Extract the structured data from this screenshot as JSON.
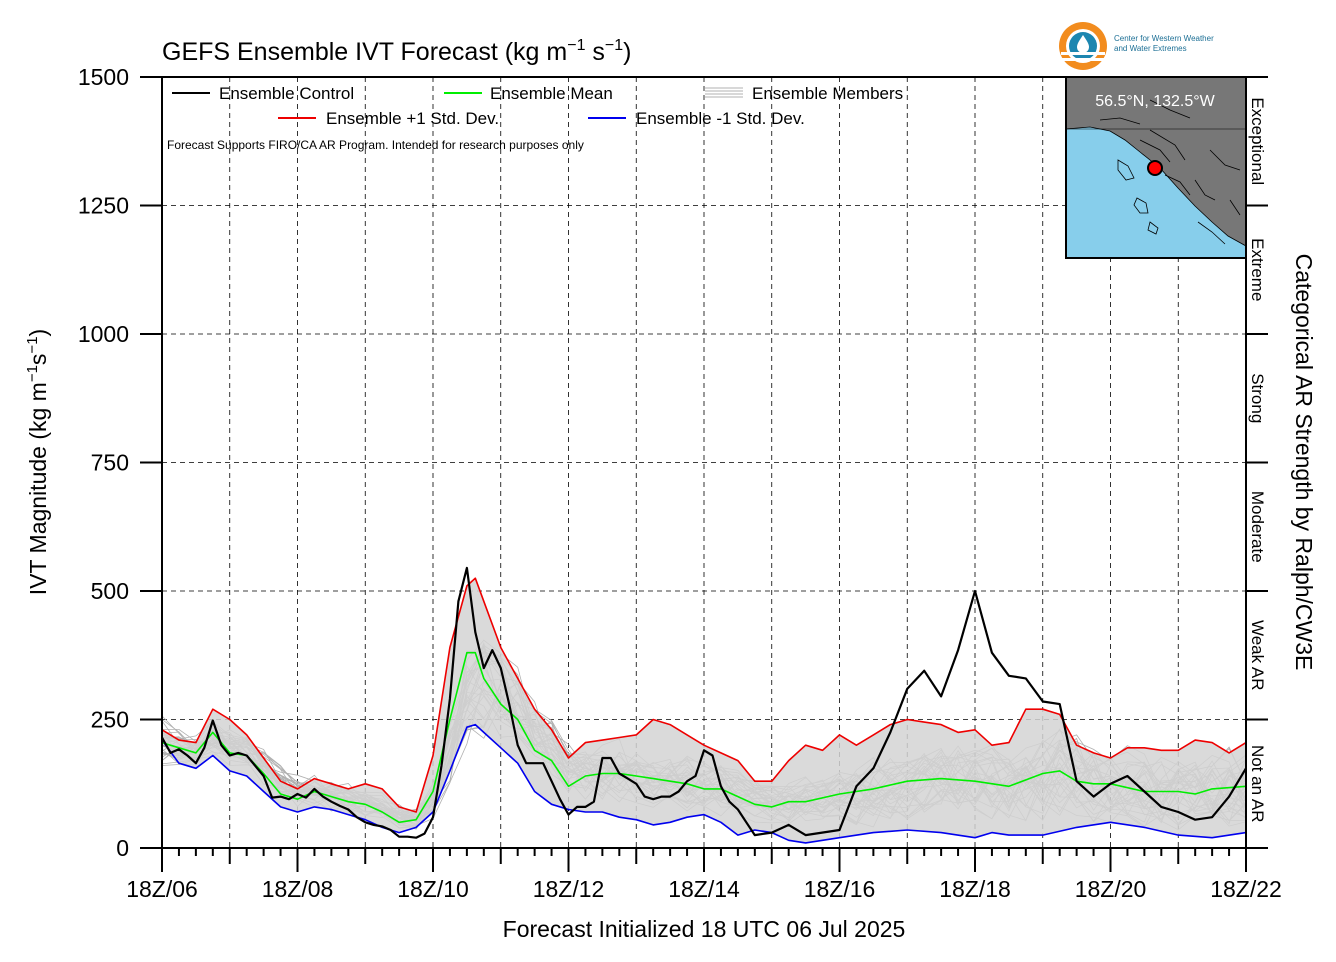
{
  "chart_data": {
    "type": "line",
    "title": "GEFS Ensemble IVT Forecast (kg m",
    "title_sup1": "−1",
    "title_mid": " s",
    "title_sup2": "−1",
    "title_end": ")",
    "ylabel": "IVT Magnitude (kg m",
    "ylabel_sup1": "−1",
    "ylabel_mid": "s",
    "ylabel_sup2": "−1",
    "ylabel_end": ")",
    "xlabel": "Forecast Initialized 18 UTC 06 Jul 2025",
    "right_axis_label": "Categorical AR Strength by Ralph/CW3E",
    "note": "Forecast Supports FIRO/CA AR Program. Intended for research purposes only",
    "ylim": [
      0,
      1500
    ],
    "yticks": [
      0,
      250,
      500,
      750,
      1000,
      1250,
      1500
    ],
    "xlim": [
      0,
      16
    ],
    "xticks": [
      "18Z/06",
      "18Z/08",
      "18Z/10",
      "18Z/12",
      "18Z/14",
      "18Z/16",
      "18Z/18",
      "18Z/20",
      "18Z/22"
    ],
    "x_unit": "days since 18Z/06",
    "grid": true,
    "categories": [
      {
        "label": "Not an AR",
        "range": [
          0,
          250
        ]
      },
      {
        "label": "Weak AR",
        "range": [
          250,
          500
        ]
      },
      {
        "label": "Moderate",
        "range": [
          500,
          750
        ]
      },
      {
        "label": "Strong",
        "range": [
          750,
          1000
        ]
      },
      {
        "label": "Extreme",
        "range": [
          1000,
          1250
        ]
      },
      {
        "label": "Exceptional",
        "range": [
          1250,
          1500
        ]
      }
    ],
    "legend": {
      "control": "Ensemble Control",
      "mean": "Ensemble Mean",
      "members": "Ensemble Members",
      "plus_sd": "Ensemble +1 Std. Dev.",
      "minus_sd": "Ensemble -1 Std. Dev."
    },
    "colors": {
      "control": "#000000",
      "mean": "#00ee00",
      "plus_sd": "#ee0000",
      "minus_sd": "#0000ee",
      "members": "#b0b0b0",
      "band": "#d3d3d3",
      "map_land": "#777777",
      "map_water": "#87ceeb",
      "marker": "#ff0000"
    },
    "series": [
      {
        "key": "control",
        "points": [
          [
            0,
            215
          ],
          [
            0.125,
            185
          ],
          [
            0.25,
            192
          ],
          [
            0.375,
            180
          ],
          [
            0.5,
            165
          ],
          [
            0.625,
            195
          ],
          [
            0.75,
            248
          ],
          [
            0.875,
            200
          ],
          [
            1,
            180
          ],
          [
            1.125,
            185
          ],
          [
            1.25,
            180
          ],
          [
            1.375,
            160
          ],
          [
            1.5,
            140
          ],
          [
            1.625,
            98
          ],
          [
            1.75,
            100
          ],
          [
            1.875,
            95
          ],
          [
            2,
            105
          ],
          [
            2.125,
            98
          ],
          [
            2.25,
            115
          ],
          [
            2.375,
            100
          ],
          [
            2.5,
            90
          ],
          [
            2.625,
            82
          ],
          [
            2.75,
            75
          ],
          [
            2.875,
            60
          ],
          [
            3,
            50
          ],
          [
            3.125,
            45
          ],
          [
            3.25,
            42
          ],
          [
            3.375,
            35
          ],
          [
            3.5,
            22
          ],
          [
            3.625,
            22
          ],
          [
            3.75,
            20
          ],
          [
            3.875,
            28
          ],
          [
            4,
            60
          ],
          [
            4.125,
            160
          ],
          [
            4.25,
            290
          ],
          [
            4.375,
            480
          ],
          [
            4.5,
            545
          ],
          [
            4.625,
            420
          ],
          [
            4.75,
            350
          ],
          [
            4.875,
            385
          ],
          [
            5,
            350
          ],
          [
            5.125,
            280
          ],
          [
            5.25,
            200
          ],
          [
            5.375,
            165
          ],
          [
            5.5,
            165
          ],
          [
            5.625,
            165
          ],
          [
            5.75,
            130
          ],
          [
            5.875,
            95
          ],
          [
            6,
            65
          ],
          [
            6.125,
            80
          ],
          [
            6.25,
            80
          ],
          [
            6.375,
            90
          ],
          [
            6.5,
            175
          ],
          [
            6.625,
            175
          ],
          [
            6.75,
            145
          ],
          [
            6.875,
            135
          ],
          [
            7,
            125
          ],
          [
            7.125,
            100
          ],
          [
            7.25,
            95
          ],
          [
            7.375,
            100
          ],
          [
            7.5,
            100
          ],
          [
            7.625,
            110
          ],
          [
            7.75,
            130
          ],
          [
            7.875,
            140
          ],
          [
            8,
            190
          ],
          [
            8.125,
            180
          ],
          [
            8.25,
            120
          ],
          [
            8.375,
            90
          ],
          [
            8.5,
            75
          ],
          [
            8.625,
            50
          ],
          [
            8.75,
            25
          ],
          [
            9,
            30
          ],
          [
            9.25,
            45
          ],
          [
            9.5,
            25
          ],
          [
            10,
            35
          ],
          [
            10.25,
            120
          ],
          [
            10.5,
            155
          ],
          [
            10.75,
            225
          ],
          [
            11,
            310
          ],
          [
            11.25,
            345
          ],
          [
            11.5,
            295
          ],
          [
            11.75,
            385
          ],
          [
            12,
            500
          ],
          [
            12.25,
            380
          ],
          [
            12.5,
            335
          ],
          [
            12.75,
            330
          ],
          [
            13,
            285
          ],
          [
            13.25,
            280
          ],
          [
            13.5,
            130
          ],
          [
            13.75,
            100
          ],
          [
            14,
            125
          ],
          [
            14.25,
            140
          ],
          [
            14.5,
            110
          ],
          [
            14.75,
            80
          ],
          [
            15,
            70
          ],
          [
            15.25,
            55
          ],
          [
            15.5,
            60
          ],
          [
            15.75,
            100
          ],
          [
            16,
            155
          ]
        ]
      },
      {
        "key": "mean",
        "points": [
          [
            0,
            205
          ],
          [
            0.25,
            195
          ],
          [
            0.5,
            185
          ],
          [
            0.75,
            225
          ],
          [
            1,
            185
          ],
          [
            1.25,
            180
          ],
          [
            1.5,
            145
          ],
          [
            1.75,
            105
          ],
          [
            2,
            95
          ],
          [
            2.25,
            110
          ],
          [
            2.5,
            100
          ],
          [
            2.75,
            90
          ],
          [
            3,
            85
          ],
          [
            3.25,
            70
          ],
          [
            3.5,
            50
          ],
          [
            3.75,
            55
          ],
          [
            4,
            110
          ],
          [
            4.25,
            250
          ],
          [
            4.5,
            380
          ],
          [
            4.625,
            380
          ],
          [
            4.75,
            330
          ],
          [
            5,
            280
          ],
          [
            5.25,
            250
          ],
          [
            5.5,
            190
          ],
          [
            5.75,
            170
          ],
          [
            6,
            120
          ],
          [
            6.25,
            140
          ],
          [
            6.5,
            145
          ],
          [
            6.75,
            145
          ],
          [
            7,
            140
          ],
          [
            7.25,
            135
          ],
          [
            7.5,
            130
          ],
          [
            7.75,
            125
          ],
          [
            8,
            115
          ],
          [
            8.25,
            115
          ],
          [
            8.5,
            100
          ],
          [
            8.75,
            85
          ],
          [
            9,
            80
          ],
          [
            9.25,
            90
          ],
          [
            9.5,
            90
          ],
          [
            10,
            105
          ],
          [
            10.5,
            115
          ],
          [
            11,
            130
          ],
          [
            11.5,
            135
          ],
          [
            12,
            130
          ],
          [
            12.5,
            120
          ],
          [
            13,
            145
          ],
          [
            13.25,
            150
          ],
          [
            13.5,
            130
          ],
          [
            13.75,
            125
          ],
          [
            14,
            125
          ],
          [
            14.5,
            110
          ],
          [
            15,
            110
          ],
          [
            15.25,
            105
          ],
          [
            15.5,
            115
          ],
          [
            16,
            120
          ]
        ]
      },
      {
        "key": "plus_sd",
        "points": [
          [
            0,
            230
          ],
          [
            0.25,
            210
          ],
          [
            0.5,
            205
          ],
          [
            0.75,
            270
          ],
          [
            1,
            250
          ],
          [
            1.25,
            220
          ],
          [
            1.5,
            175
          ],
          [
            1.75,
            130
          ],
          [
            2,
            115
          ],
          [
            2.25,
            135
          ],
          [
            2.5,
            125
          ],
          [
            2.75,
            115
          ],
          [
            3,
            125
          ],
          [
            3.25,
            115
          ],
          [
            3.5,
            80
          ],
          [
            3.75,
            70
          ],
          [
            4,
            180
          ],
          [
            4.25,
            390
          ],
          [
            4.5,
            510
          ],
          [
            4.625,
            525
          ],
          [
            4.75,
            480
          ],
          [
            5,
            390
          ],
          [
            5.25,
            330
          ],
          [
            5.5,
            270
          ],
          [
            5.75,
            230
          ],
          [
            6,
            175
          ],
          [
            6.25,
            205
          ],
          [
            6.5,
            210
          ],
          [
            6.75,
            215
          ],
          [
            7,
            220
          ],
          [
            7.25,
            250
          ],
          [
            7.5,
            240
          ],
          [
            7.75,
            220
          ],
          [
            8,
            200
          ],
          [
            8.25,
            185
          ],
          [
            8.5,
            170
          ],
          [
            8.75,
            130
          ],
          [
            9,
            130
          ],
          [
            9.25,
            170
          ],
          [
            9.5,
            200
          ],
          [
            9.75,
            190
          ],
          [
            10,
            220
          ],
          [
            10.25,
            200
          ],
          [
            10.5,
            220
          ],
          [
            10.75,
            240
          ],
          [
            11,
            250
          ],
          [
            11.25,
            245
          ],
          [
            11.5,
            240
          ],
          [
            11.75,
            225
          ],
          [
            12,
            230
          ],
          [
            12.25,
            200
          ],
          [
            12.5,
            205
          ],
          [
            12.75,
            270
          ],
          [
            13,
            270
          ],
          [
            13.25,
            260
          ],
          [
            13.5,
            200
          ],
          [
            13.75,
            185
          ],
          [
            14,
            175
          ],
          [
            14.25,
            195
          ],
          [
            14.5,
            195
          ],
          [
            14.75,
            190
          ],
          [
            15,
            190
          ],
          [
            15.25,
            210
          ],
          [
            15.5,
            205
          ],
          [
            15.75,
            185
          ],
          [
            16,
            205
          ]
        ]
      },
      {
        "key": "minus_sd",
        "points": [
          [
            0,
            210
          ],
          [
            0.25,
            165
          ],
          [
            0.5,
            155
          ],
          [
            0.75,
            180
          ],
          [
            1,
            150
          ],
          [
            1.25,
            140
          ],
          [
            1.5,
            110
          ],
          [
            1.75,
            80
          ],
          [
            2,
            70
          ],
          [
            2.25,
            80
          ],
          [
            2.5,
            75
          ],
          [
            2.75,
            65
          ],
          [
            3,
            55
          ],
          [
            3.25,
            40
          ],
          [
            3.5,
            30
          ],
          [
            3.75,
            40
          ],
          [
            4,
            70
          ],
          [
            4.25,
            150
          ],
          [
            4.5,
            235
          ],
          [
            4.625,
            240
          ],
          [
            4.75,
            225
          ],
          [
            5,
            195
          ],
          [
            5.25,
            165
          ],
          [
            5.5,
            110
          ],
          [
            5.75,
            85
          ],
          [
            6,
            75
          ],
          [
            6.25,
            70
          ],
          [
            6.5,
            70
          ],
          [
            6.75,
            60
          ],
          [
            7,
            55
          ],
          [
            7.25,
            45
          ],
          [
            7.5,
            50
          ],
          [
            7.75,
            60
          ],
          [
            8,
            65
          ],
          [
            8.25,
            50
          ],
          [
            8.5,
            25
          ],
          [
            8.75,
            35
          ],
          [
            9,
            30
          ],
          [
            9.25,
            15
          ],
          [
            9.5,
            10
          ],
          [
            10,
            20
          ],
          [
            10.5,
            30
          ],
          [
            11,
            35
          ],
          [
            11.5,
            30
          ],
          [
            12,
            20
          ],
          [
            12.25,
            30
          ],
          [
            12.5,
            25
          ],
          [
            13,
            25
          ],
          [
            13.5,
            40
          ],
          [
            14,
            50
          ],
          [
            14.5,
            40
          ],
          [
            15,
            25
          ],
          [
            15.5,
            20
          ],
          [
            16,
            30
          ]
        ]
      }
    ]
  },
  "map_inset": {
    "location_label": "56.5°N, 132.5°W"
  },
  "logo": {
    "org_line1": "Center for Western Weather",
    "org_line2": "and Water Extremes"
  }
}
